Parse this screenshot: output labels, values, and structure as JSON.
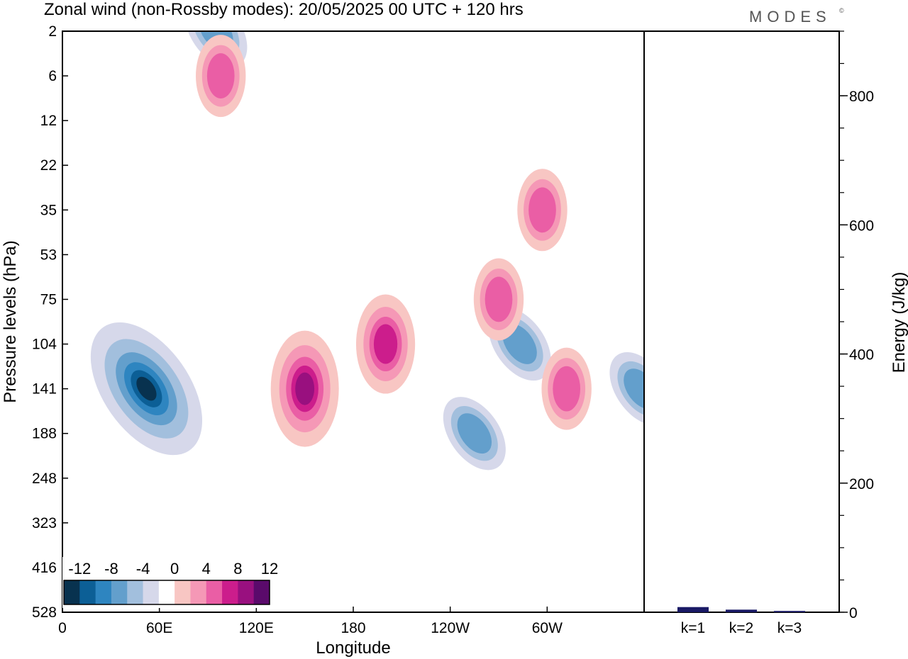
{
  "title": "Zonal wind (non-Rossby modes):  20/05/2025  00 UTC  + 120 hrs",
  "logo": "MODES",
  "chart_data": [
    {
      "type": "heatmap",
      "xlabel": "Longitude",
      "ylabel": "Pressure levels (hPa)",
      "x_ticks": [
        "0",
        "60E",
        "120E",
        "180",
        "120W",
        "60W"
      ],
      "x_tick_values": [
        0,
        60,
        120,
        180,
        240,
        300
      ],
      "xlim": [
        0,
        360
      ],
      "y_ticks": [
        "2",
        "6",
        "12",
        "22",
        "35",
        "53",
        "75",
        "104",
        "141",
        "188",
        "248",
        "323",
        "416",
        "528"
      ],
      "y_axis": "pressure levels, top to bottom",
      "colorbar": {
        "labels": [
          "-12",
          "-8",
          "-4",
          "0",
          "4",
          "8",
          "12"
        ],
        "levels": [
          -14,
          -12,
          -10,
          -8,
          -6,
          -4,
          -2,
          2,
          4,
          6,
          8,
          10,
          12,
          14
        ],
        "colors": [
          "#08324f",
          "#0c5f96",
          "#2e85c0",
          "#639fcc",
          "#a2bfdd",
          "#d6d8ea",
          "#ffffff",
          "#f8c6c3",
          "#f598b6",
          "#ea5ea5",
          "#cc1d8c",
          "#99107f",
          "#5a0a6b"
        ]
      },
      "anomalies": [
        {
          "sign": "negative",
          "lon": 52,
          "level": "141",
          "peak": -14
        },
        {
          "sign": "negative",
          "lon": 358,
          "level": "141",
          "peak": -6
        },
        {
          "sign": "negative",
          "lon": 255,
          "level": "188",
          "peak": -6
        },
        {
          "sign": "negative",
          "lon": 283,
          "level": "104",
          "peak": -6
        },
        {
          "sign": "negative",
          "lon": 95,
          "level": "2",
          "peak": -6
        },
        {
          "sign": "positive",
          "lon": 150,
          "level": "141",
          "peak": 10
        },
        {
          "sign": "positive",
          "lon": 200,
          "level": "104",
          "peak": 8
        },
        {
          "sign": "positive",
          "lon": 312,
          "level": "141",
          "peak": 6
        },
        {
          "sign": "positive",
          "lon": 297,
          "level": "35",
          "peak": 6
        },
        {
          "sign": "positive",
          "lon": 270,
          "level": "75",
          "peak": 6
        },
        {
          "sign": "positive",
          "lon": 98,
          "level": "6",
          "peak": 6
        }
      ]
    },
    {
      "type": "bar",
      "categories": [
        "k=1",
        "k=2",
        "k=3"
      ],
      "values": [
        8,
        4,
        2
      ],
      "ylabel": "Energy (J/kg)",
      "ylim": [
        0,
        900
      ],
      "y_ticks": [
        0,
        200,
        400,
        600,
        800
      ],
      "y_minor_step": 50,
      "bar_color": "#1a1a66"
    }
  ]
}
